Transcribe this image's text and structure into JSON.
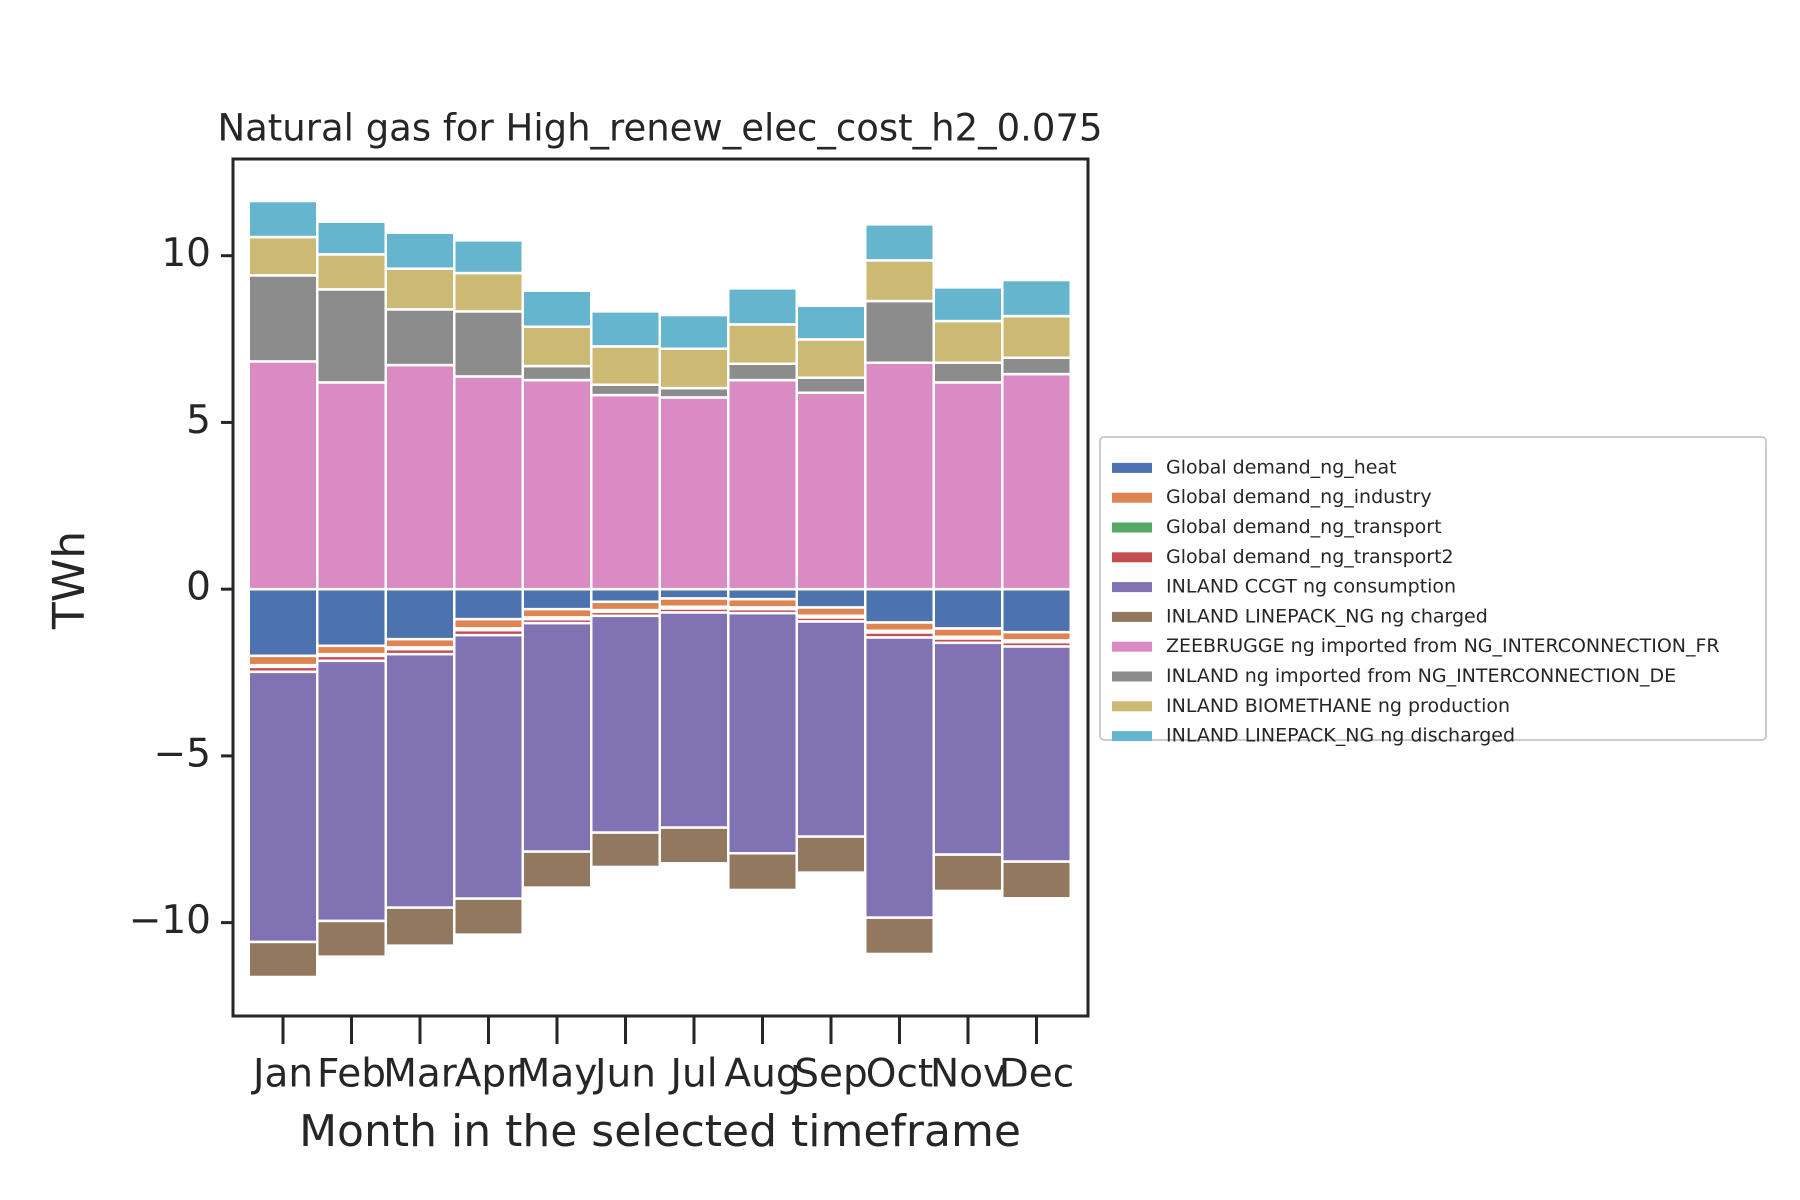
{
  "chart_data": {
    "type": "stacked_bar",
    "title": "Natural gas for High_renew_elec_cost_h2_0.075",
    "xlabel": "Month in the selected timeframe",
    "ylabel": "TWh",
    "categories": [
      "Jan",
      "Feb",
      "Mar",
      "Apr",
      "May",
      "Jun",
      "Jul",
      "Aug",
      "Sep",
      "Oct",
      "Nov",
      "Dec"
    ],
    "ylim": [
      -12.8,
      12.9
    ],
    "yticks": [
      {
        "value": -10,
        "label": "−10"
      },
      {
        "value": -5,
        "label": "−5"
      },
      0,
      5,
      10
    ],
    "grid": false,
    "legend": "right",
    "series": [
      {
        "name": "Global demand_ng_heat",
        "color": "#4c72b0",
        "values": [
          -2.0,
          -1.7,
          -1.5,
          -0.9,
          -0.6,
          -0.38,
          -0.28,
          -0.3,
          -0.55,
          -1.0,
          -1.18,
          -1.29
        ]
      },
      {
        "name": "Global demand_ng_industry",
        "color": "#dd8452",
        "values": [
          -0.28,
          -0.25,
          -0.25,
          -0.28,
          -0.25,
          -0.25,
          -0.25,
          -0.25,
          -0.25,
          -0.25,
          -0.25,
          -0.25
        ]
      },
      {
        "name": "Global demand_ng_transport",
        "color": "#55a868",
        "values": [
          -0.05,
          -0.05,
          -0.05,
          -0.05,
          -0.05,
          -0.05,
          -0.05,
          -0.05,
          -0.05,
          -0.05,
          -0.05,
          -0.05
        ]
      },
      {
        "name": "Global demand_ng_transport2",
        "color": "#c44e52",
        "values": [
          -0.15,
          -0.15,
          -0.15,
          -0.15,
          -0.12,
          -0.12,
          -0.12,
          -0.12,
          -0.12,
          -0.15,
          -0.13,
          -0.13
        ]
      },
      {
        "name": "INLAND CCGT ng consumption",
        "color": "#8172b3",
        "values": [
          -8.1,
          -7.8,
          -7.6,
          -7.9,
          -6.85,
          -6.5,
          -6.45,
          -7.2,
          -6.45,
          -8.4,
          -6.35,
          -6.45
        ]
      },
      {
        "name": "INLAND LINEPACK_NG ng charged",
        "color": "#937860",
        "values": [
          -1.05,
          -1.07,
          -1.14,
          -1.08,
          -1.08,
          -1.03,
          -1.07,
          -1.1,
          -1.08,
          -1.09,
          -1.09,
          -1.1
        ]
      },
      {
        "name": "ZEEBRUGGE ng imported from NG_INTERCONNECTION_FR",
        "color": "#da8bc3",
        "values": [
          6.83,
          6.2,
          6.72,
          6.38,
          6.27,
          5.82,
          5.75,
          6.27,
          5.89,
          6.79,
          6.2,
          6.45
        ]
      },
      {
        "name": "INLAND ng imported from NG_INTERCONNECTION_DE",
        "color": "#8c8c8c",
        "values": [
          2.58,
          2.79,
          1.67,
          1.95,
          0.42,
          0.31,
          0.28,
          0.49,
          0.45,
          1.85,
          0.59,
          0.49
        ]
      },
      {
        "name": "INLAND BIOMETHANE ng production",
        "color": "#ccb974",
        "values": [
          1.15,
          1.05,
          1.22,
          1.15,
          1.18,
          1.15,
          1.18,
          1.18,
          1.15,
          1.22,
          1.25,
          1.25
        ]
      },
      {
        "name": "INLAND LINEPACK_NG ng discharged",
        "color": "#64b5cd",
        "values": [
          1.08,
          0.98,
          1.08,
          0.98,
          1.08,
          1.05,
          1.01,
          1.08,
          1.01,
          1.08,
          1.01,
          1.08
        ]
      }
    ]
  }
}
